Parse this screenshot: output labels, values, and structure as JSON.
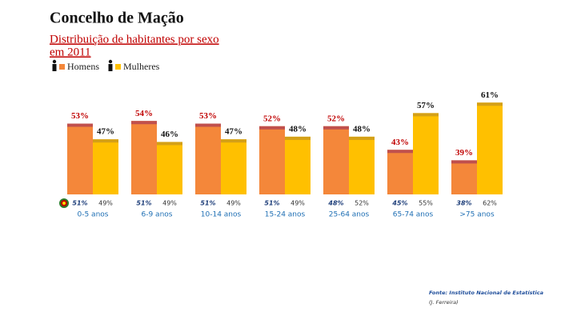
{
  "chart_data": {
    "type": "bar",
    "title": "Concelho de Mação",
    "subtitle": [
      "Distribuição de habitantes por sexo",
      "em 2011"
    ],
    "categories": [
      "0-5 anos",
      "6-9 anos",
      "10-14 anos",
      "15-24 anos",
      "25-64 anos",
      "65-74 anos",
      ">75 anos"
    ],
    "series": [
      {
        "name": "Homens",
        "color": "#f4873a",
        "cap_color": "#c0504d",
        "label_color": "#c00000",
        "values": [
          53,
          54,
          53,
          52,
          52,
          43,
          39
        ],
        "value_labels": [
          "53%",
          "54%",
          "53%",
          "52%",
          "52%",
          "43%",
          "39%"
        ],
        "reference_values": [
          51,
          51,
          51,
          51,
          48,
          45,
          38
        ],
        "reference_value_labels": [
          "51%",
          "51%",
          "51%",
          "51%",
          "48%",
          "45%",
          "38%"
        ]
      },
      {
        "name": "Mulheres",
        "color": "#ffc000",
        "cap_color": "#d4a017",
        "label_color": "#111111",
        "values": [
          47,
          46,
          47,
          48,
          48,
          57,
          61
        ],
        "value_labels": [
          "47%",
          "46%",
          "47%",
          "48%",
          "48%",
          "57%",
          "61%"
        ],
        "reference_values": [
          49,
          49,
          49,
          49,
          52,
          55,
          62
        ],
        "reference_value_labels": [
          "49%",
          "49%",
          "49%",
          "49%",
          "52%",
          "55%",
          "62%"
        ]
      }
    ],
    "ylim": [
      26,
      62
    ],
    "source": "Fonte: Instituto Nacional de Estatística",
    "author": "(J. Ferreira)"
  }
}
